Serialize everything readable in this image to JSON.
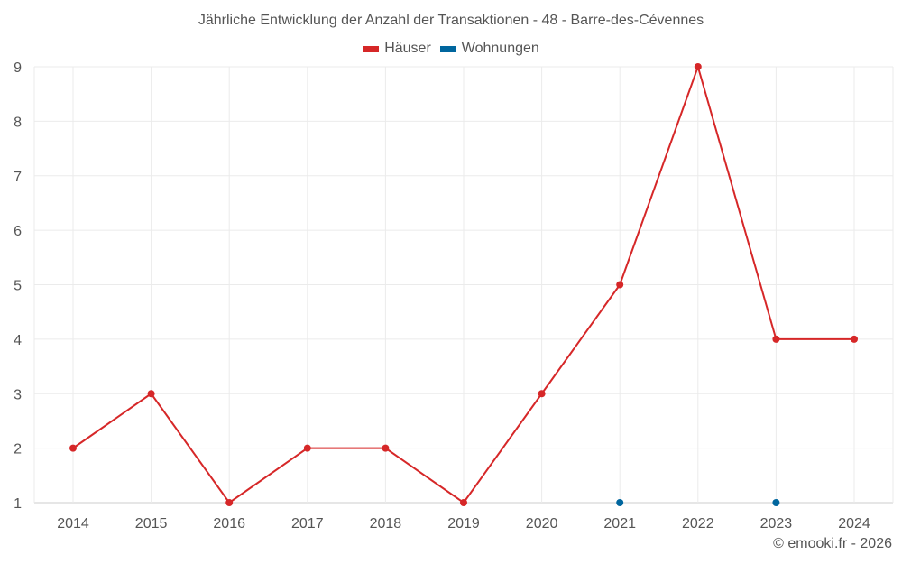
{
  "chart_data": {
    "type": "line",
    "title": "Jährliche Entwicklung der Anzahl der Transaktionen - 48 - Barre-des-Cévennes",
    "xlabel": "",
    "ylabel": "",
    "categories": [
      "2014",
      "2015",
      "2016",
      "2017",
      "2018",
      "2019",
      "2020",
      "2021",
      "2022",
      "2023",
      "2024"
    ],
    "series": [
      {
        "name": "Häuser",
        "color": "#d62728",
        "values": [
          2,
          3,
          1,
          2,
          2,
          1,
          3,
          5,
          9,
          4,
          4
        ]
      },
      {
        "name": "Wohnungen",
        "color": "#00669e",
        "values": [
          null,
          null,
          null,
          null,
          null,
          null,
          null,
          1,
          null,
          1,
          null
        ]
      }
    ],
    "ylim": [
      1,
      9
    ],
    "yticks": [
      1,
      2,
      3,
      4,
      5,
      6,
      7,
      8,
      9
    ],
    "grid": true,
    "legend_position": "top"
  },
  "credit": "© emooki.fr - 2026"
}
